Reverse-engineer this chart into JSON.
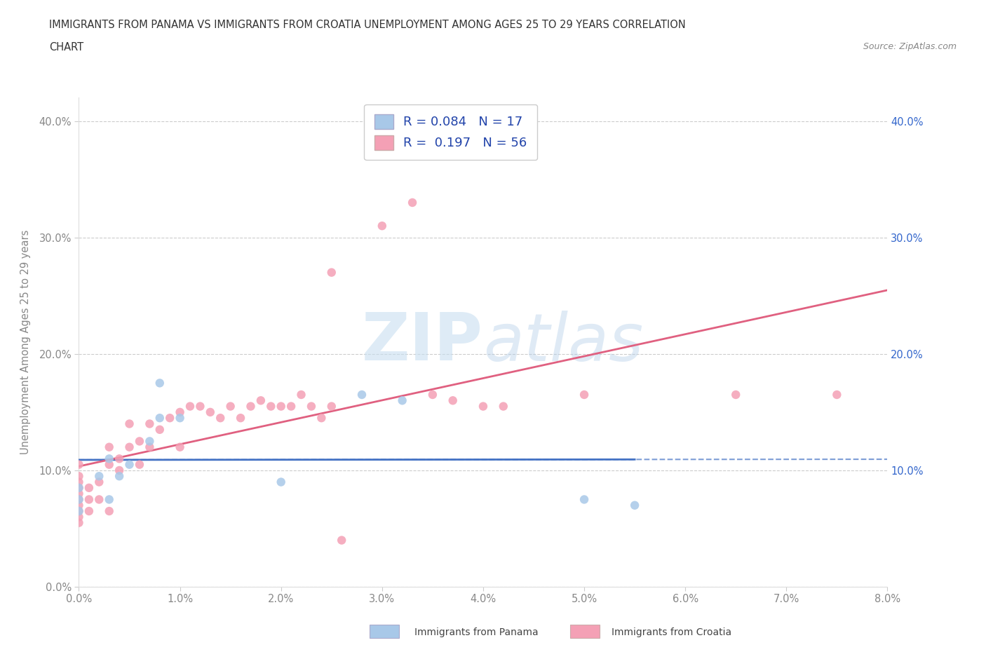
{
  "title_line1": "IMMIGRANTS FROM PANAMA VS IMMIGRANTS FROM CROATIA UNEMPLOYMENT AMONG AGES 25 TO 29 YEARS CORRELATION",
  "title_line2": "CHART",
  "source_text": "Source: ZipAtlas.com",
  "ylabel": "Unemployment Among Ages 25 to 29 years",
  "xlim": [
    0.0,
    0.08
  ],
  "ylim": [
    0.0,
    0.42
  ],
  "xticks": [
    0.0,
    0.01,
    0.02,
    0.03,
    0.04,
    0.05,
    0.06,
    0.07,
    0.08
  ],
  "xticklabels": [
    "0.0%",
    "1.0%",
    "2.0%",
    "3.0%",
    "4.0%",
    "5.0%",
    "6.0%",
    "7.0%",
    "8.0%"
  ],
  "yticks": [
    0.0,
    0.1,
    0.2,
    0.3,
    0.4
  ],
  "yticklabels": [
    "0.0%",
    "10.0%",
    "20.0%",
    "30.0%",
    "40.0%"
  ],
  "right_yticklabels": [
    "",
    "10.0%",
    "20.0%",
    "30.0%",
    "40.0%"
  ],
  "watermark_zip": "ZIP",
  "watermark_atlas": "atlas",
  "panama_color": "#a8c8e8",
  "croatia_color": "#f4a0b5",
  "panama_line_color": "#4472c4",
  "croatia_line_color": "#e06080",
  "panama_R": 0.084,
  "panama_N": 17,
  "croatia_R": 0.197,
  "croatia_N": 56,
  "panama_scatter_x": [
    0.0,
    0.0,
    0.0,
    0.002,
    0.003,
    0.003,
    0.004,
    0.005,
    0.007,
    0.008,
    0.008,
    0.01,
    0.02,
    0.028,
    0.032,
    0.05,
    0.055
  ],
  "panama_scatter_y": [
    0.065,
    0.075,
    0.085,
    0.095,
    0.11,
    0.075,
    0.095,
    0.105,
    0.125,
    0.175,
    0.145,
    0.145,
    0.09,
    0.165,
    0.16,
    0.075,
    0.07
  ],
  "croatia_scatter_x": [
    0.0,
    0.0,
    0.0,
    0.0,
    0.0,
    0.0,
    0.0,
    0.0,
    0.0,
    0.0,
    0.001,
    0.001,
    0.001,
    0.002,
    0.002,
    0.003,
    0.003,
    0.003,
    0.004,
    0.004,
    0.005,
    0.005,
    0.006,
    0.006,
    0.007,
    0.007,
    0.008,
    0.009,
    0.01,
    0.01,
    0.011,
    0.012,
    0.013,
    0.014,
    0.015,
    0.016,
    0.017,
    0.018,
    0.019,
    0.02,
    0.021,
    0.022,
    0.023,
    0.024,
    0.025,
    0.025,
    0.026,
    0.03,
    0.033,
    0.035,
    0.037,
    0.04,
    0.042,
    0.05,
    0.065,
    0.075
  ],
  "croatia_scatter_y": [
    0.055,
    0.06,
    0.065,
    0.07,
    0.075,
    0.08,
    0.085,
    0.09,
    0.095,
    0.105,
    0.065,
    0.075,
    0.085,
    0.09,
    0.075,
    0.105,
    0.12,
    0.065,
    0.1,
    0.11,
    0.14,
    0.12,
    0.125,
    0.105,
    0.14,
    0.12,
    0.135,
    0.145,
    0.15,
    0.12,
    0.155,
    0.155,
    0.15,
    0.145,
    0.155,
    0.145,
    0.155,
    0.16,
    0.155,
    0.155,
    0.155,
    0.165,
    0.155,
    0.145,
    0.155,
    0.27,
    0.04,
    0.31,
    0.33,
    0.165,
    0.16,
    0.155,
    0.155,
    0.165,
    0.165,
    0.165
  ],
  "background_color": "#ffffff",
  "grid_color": "#cccccc",
  "title_color": "#333333",
  "axis_label_color": "#888888",
  "tick_color": "#888888",
  "legend_color": "#2244aa",
  "legend_label_panama": "Immigrants from Panama",
  "legend_label_croatia": "Immigrants from Croatia"
}
